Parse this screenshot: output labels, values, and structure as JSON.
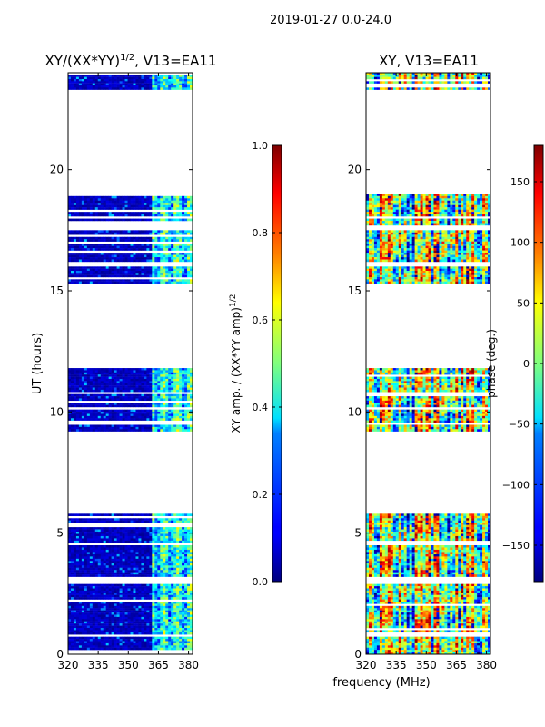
{
  "suptitle": "2019-01-27 0.0-24.0",
  "chart_data": [
    {
      "type": "heatmap",
      "title": "XY/(XX*YY)^1/2, V13=EA11",
      "title_main": "XY/(XX*YY)",
      "title_exp": "1/2",
      "title_tail": ", V13=EA11",
      "xlabel": "",
      "ylabel": "UT (hours)",
      "xlim": [
        320,
        382
      ],
      "ylim": [
        0,
        24
      ],
      "xticks": [
        "320",
        "335",
        "350",
        "365",
        "380"
      ],
      "xtick_values": [
        320,
        335,
        350,
        365,
        380
      ],
      "yticks": [
        "0",
        "5",
        "10",
        "15",
        "20"
      ],
      "ytick_values": [
        0,
        5,
        10,
        15,
        20
      ],
      "colormap": "jet",
      "colorbar": {
        "label": "XY amp. / (XX*YY amp)^1/2",
        "label_main": "XY amp. / (XX*YY amp)",
        "label_exp": "1/2",
        "range": [
          0.0,
          1.0
        ],
        "ticks": [
          "0.0",
          "0.2",
          "0.4",
          "0.6",
          "0.8",
          "1.0"
        ],
        "tick_values": [
          0.0,
          0.2,
          0.4,
          0.6,
          0.8,
          1.0
        ]
      },
      "data_blocks_hours": [
        [
          0.0,
          2.9
        ],
        [
          3.2,
          4.5
        ],
        [
          4.6,
          5.8
        ],
        [
          9.2,
          10.1
        ],
        [
          10.2,
          11.9
        ],
        [
          15.3,
          16.0
        ],
        [
          16.2,
          17.5
        ],
        [
          17.7,
          19.0
        ],
        [
          23.3,
          24.0
        ]
      ],
      "low_amplitude_freq_MHz": [
        320,
        362
      ],
      "active_freq_MHz": [
        362,
        382
      ]
    },
    {
      "type": "heatmap",
      "title": "XY, V13=EA11",
      "xlabel": "frequency (MHz)",
      "ylabel": "",
      "xlim": [
        320,
        382
      ],
      "ylim": [
        0,
        24
      ],
      "xticks": [
        "320",
        "335",
        "350",
        "365",
        "380"
      ],
      "xtick_values": [
        320,
        335,
        350,
        365,
        380
      ],
      "yticks": [
        "0",
        "5",
        "10",
        "15",
        "20"
      ],
      "ytick_values": [
        0,
        5,
        10,
        15,
        20
      ],
      "colormap": "jet",
      "colorbar": {
        "label": "phase (deg.)",
        "range": [
          -180,
          180
        ],
        "ticks": [
          "−150",
          "−100",
          "−50",
          "0",
          "50",
          "100",
          "150"
        ],
        "tick_values": [
          -150,
          -100,
          -50,
          0,
          50,
          100,
          150
        ]
      },
      "data_blocks_hours": [
        [
          0.0,
          2.9
        ],
        [
          3.2,
          4.5
        ],
        [
          4.6,
          5.8
        ],
        [
          9.2,
          10.1
        ],
        [
          10.2,
          11.9
        ],
        [
          15.3,
          16.0
        ],
        [
          16.2,
          17.5
        ],
        [
          17.7,
          19.0
        ],
        [
          23.3,
          24.0
        ]
      ]
    }
  ]
}
